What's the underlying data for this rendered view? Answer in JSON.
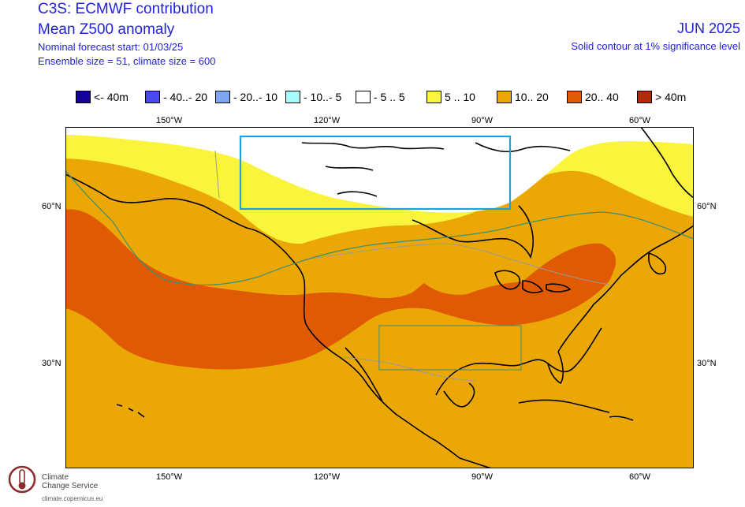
{
  "header": {
    "title_line1": "C3S: ECMWF contribution",
    "title_line2": "Mean Z500 anomaly",
    "forecast_start": "Nominal forecast start: 01/03/25",
    "ensemble": "Ensemble size = 51, climate size = 600",
    "valid_month": "JUN 2025",
    "significance_note": "Solid contour at 1% significance level"
  },
  "legend": {
    "items": [
      {
        "label": "<- 40m",
        "color": "#14009a"
      },
      {
        "label": "- 40..- 20",
        "color": "#4a4af0"
      },
      {
        "label": "- 20..- 10",
        "color": "#7ea6f0"
      },
      {
        "label": "- 10..- 5",
        "color": "#a6fafa"
      },
      {
        "label": "- 5 .. 5",
        "color": "#ffffff"
      },
      {
        "label": "5 .. 10",
        "color": "#faf53c"
      },
      {
        "label": "10.. 20",
        "color": "#eba705"
      },
      {
        "label": "20.. 40",
        "color": "#e05a04"
      },
      {
        "label": "> 40m",
        "color": "#b22a0c"
      }
    ]
  },
  "map": {
    "lon_labels_top": [
      "150°W",
      "120°W",
      "90°W",
      "60°W"
    ],
    "lon_labels_bottom": [
      "150°W",
      "120°W",
      "90°W",
      "60°W"
    ],
    "lat_labels_left": [
      "60°N",
      "30°N"
    ],
    "lat_labels_right": [
      "60°N",
      "30°N"
    ],
    "colors": {
      "base": "#eba705",
      "strong": "#e05a04",
      "weak": "#faf53c",
      "neutral": "#ffffff",
      "coast": "#000000",
      "significance_contour": "#3d8f6e",
      "highlight_box_north": "#1aa3e0",
      "highlight_box_south": "#3d8f6e"
    }
  },
  "footer": {
    "org_line1": "Climate",
    "org_line2": "Change Service",
    "url": "climate.copernicus.eu"
  }
}
